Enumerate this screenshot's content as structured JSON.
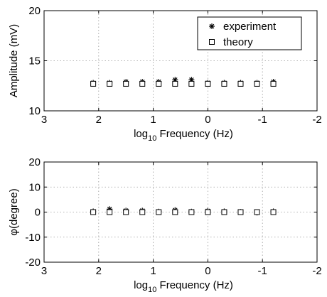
{
  "chart_data": [
    {
      "type": "scatter",
      "xlabel": {
        "prefix": "log",
        "sub": "10",
        "suffix": " Frequency (Hz)"
      },
      "ylabel": "Amplitude (mV)",
      "xlim": [
        3,
        -2
      ],
      "ylim": [
        10,
        20
      ],
      "x_ticks": [
        3,
        2,
        1,
        0,
        -1,
        -2
      ],
      "y_ticks": [
        10,
        15,
        20
      ],
      "grid": true,
      "legend": {
        "placement": "top-right",
        "entries": [
          "experiment",
          "theory"
        ]
      },
      "x": [
        2.1,
        1.8,
        1.5,
        1.2,
        0.9,
        0.6,
        0.3,
        0.0,
        -0.3,
        -0.6,
        -0.9,
        -1.2
      ],
      "series": [
        {
          "name": "experiment",
          "marker": "star",
          "values": [
            12.8,
            12.8,
            12.9,
            12.9,
            12.9,
            13.1,
            13.1,
            12.8,
            12.8,
            12.8,
            12.8,
            12.9
          ]
        },
        {
          "name": "theory",
          "marker": "square",
          "values": [
            12.7,
            12.7,
            12.7,
            12.7,
            12.7,
            12.7,
            12.7,
            12.7,
            12.7,
            12.7,
            12.7,
            12.7
          ]
        }
      ]
    },
    {
      "type": "scatter",
      "xlabel": {
        "prefix": "log",
        "sub": "10",
        "suffix": " Frequency (Hz)"
      },
      "ylabel": "φ(degree)",
      "xlim": [
        3,
        -2
      ],
      "ylim": [
        -20,
        20
      ],
      "x_ticks": [
        3,
        2,
        1,
        0,
        -1,
        -2
      ],
      "y_ticks": [
        -20,
        -10,
        0,
        10,
        20
      ],
      "grid": true,
      "x": [
        2.1,
        1.8,
        1.5,
        1.2,
        0.9,
        0.6,
        0.3,
        0.0,
        -0.3,
        -0.6,
        -0.9,
        -1.2
      ],
      "series": [
        {
          "name": "experiment",
          "marker": "star",
          "values": [
            0.3,
            1.2,
            0.6,
            0.6,
            0.2,
            0.8,
            0.2,
            0.5,
            0.3,
            0.1,
            -0.2,
            0.3
          ]
        },
        {
          "name": "theory",
          "marker": "square",
          "values": [
            0,
            0,
            0,
            0,
            0,
            0,
            0,
            0,
            0,
            0,
            0,
            0
          ]
        }
      ]
    }
  ]
}
